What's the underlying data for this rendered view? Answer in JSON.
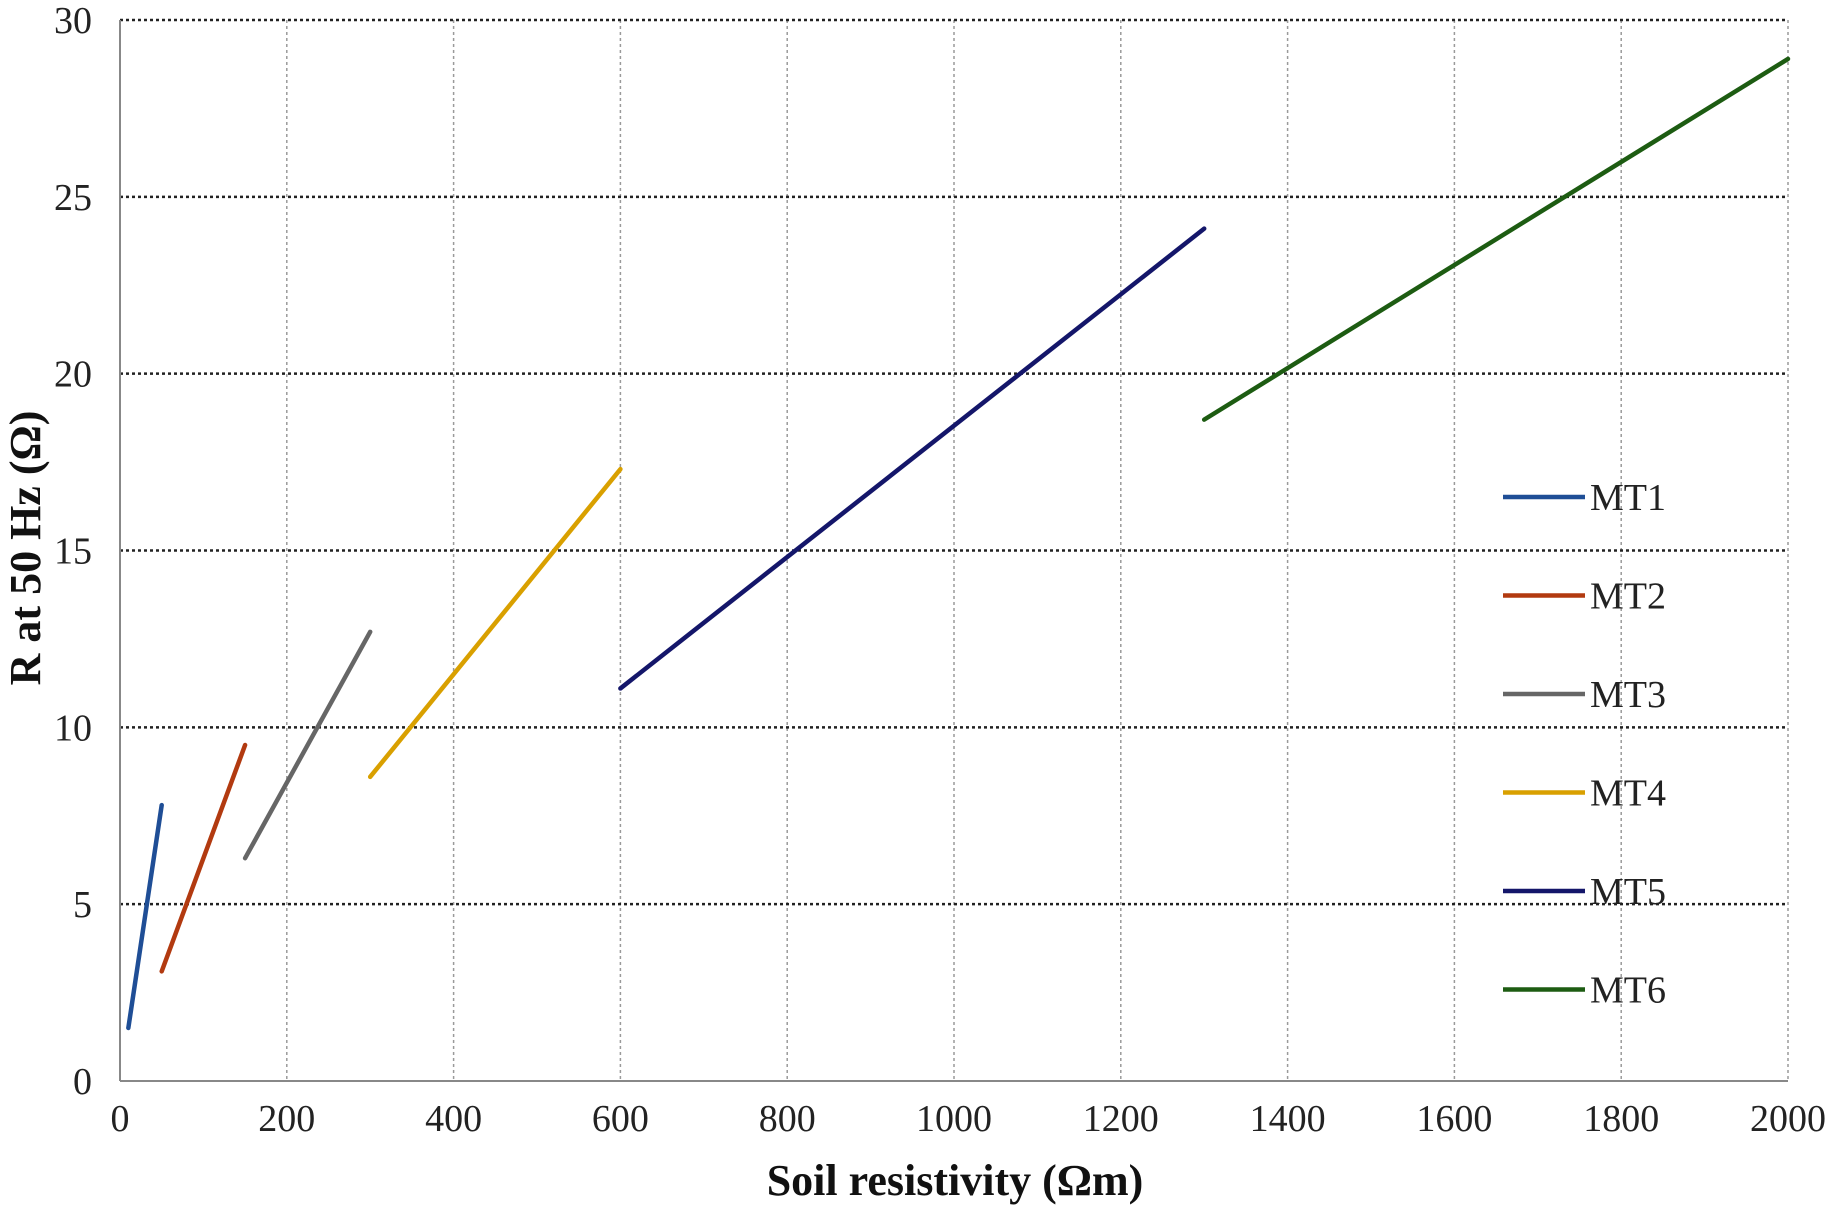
{
  "chart_data": {
    "type": "line",
    "title": "",
    "xlabel": "Soil resistivity (Ωm)",
    "ylabel": "R at 50 Hz (Ω)",
    "xlim": [
      0,
      2000
    ],
    "ylim": [
      0,
      30
    ],
    "xticks": [
      "0",
      "200",
      "400",
      "600",
      "800",
      "1000",
      "1200",
      "1400",
      "1600",
      "1800",
      "2000"
    ],
    "yticks": [
      "0",
      "5",
      "10",
      "15",
      "20",
      "25",
      "30"
    ],
    "grid": true,
    "legend_position": "right",
    "series": [
      {
        "name": "MT1",
        "color": "#1f4e96",
        "x": [
          10,
          50
        ],
        "y": [
          1.5,
          7.8
        ]
      },
      {
        "name": "MT2",
        "color": "#b23a10",
        "x": [
          50,
          150
        ],
        "y": [
          3.1,
          9.5
        ]
      },
      {
        "name": "MT3",
        "color": "#666666",
        "x": [
          150,
          300
        ],
        "y": [
          6.3,
          12.7
        ]
      },
      {
        "name": "MT4",
        "color": "#d9a000",
        "x": [
          300,
          600
        ],
        "y": [
          8.6,
          17.3
        ]
      },
      {
        "name": "MT5",
        "color": "#14166a",
        "x": [
          600,
          1300
        ],
        "y": [
          11.1,
          24.1
        ]
      },
      {
        "name": "MT6",
        "color": "#1d5c12",
        "x": [
          1300,
          2000
        ],
        "y": [
          18.7,
          28.9
        ]
      }
    ]
  }
}
